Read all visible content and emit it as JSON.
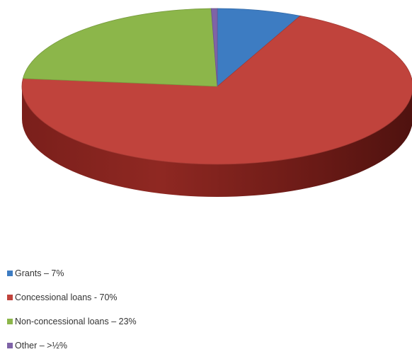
{
  "chart_data": {
    "type": "pie",
    "style": "3d",
    "categories": [
      "Grants",
      "Concessional loans",
      "Non-concessional loans",
      "Other"
    ],
    "values": [
      7,
      70,
      23,
      0.5
    ],
    "colors": [
      "#3d7cc2",
      "#c0433c",
      "#8cb64a",
      "#7f63a7"
    ],
    "legend_position": "bottom-left"
  },
  "legend": {
    "items": [
      {
        "label": "Grants – 7%",
        "color": "#3d7cc2"
      },
      {
        "label": "Concessional loans - 70%",
        "color": "#c0433c"
      },
      {
        "label": "Non-concessional loans – 23%",
        "color": "#8cb64a"
      },
      {
        "label": "Other – >½%",
        "color": "#7f63a7"
      }
    ]
  }
}
